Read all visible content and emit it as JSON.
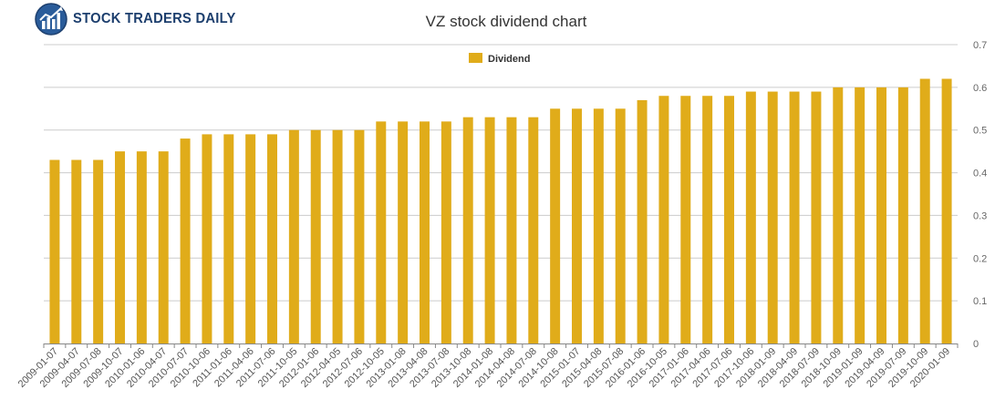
{
  "brand": {
    "logo_text": "STOCK TRADERS DAILY"
  },
  "chart_data": {
    "type": "bar",
    "title": "VZ stock dividend chart",
    "xlabel": "",
    "ylabel": "",
    "ylim": [
      0,
      0.7
    ],
    "yticks": [
      "0",
      "0.1",
      "0.2",
      "0.3",
      "0.4",
      "0.5",
      "0.6",
      "0.7"
    ],
    "y_axis_side": "right",
    "grid": true,
    "legend_position": "top-center",
    "bar_color": "#e0ac1a",
    "categories": [
      "2009-01-07",
      "2009-04-07",
      "2009-07-08",
      "2009-10-07",
      "2010-01-06",
      "2010-04-07",
      "2010-07-07",
      "2010-10-06",
      "2011-01-06",
      "2011-04-06",
      "2011-07-06",
      "2011-10-05",
      "2012-01-06",
      "2012-04-05",
      "2012-07-06",
      "2012-10-05",
      "2013-01-08",
      "2013-04-08",
      "2013-07-08",
      "2013-10-08",
      "2014-01-08",
      "2014-04-08",
      "2014-07-08",
      "2014-10-08",
      "2015-01-07",
      "2015-04-08",
      "2015-07-08",
      "2016-01-06",
      "2016-10-05",
      "2017-01-06",
      "2017-04-06",
      "2017-07-06",
      "2017-10-06",
      "2018-01-09",
      "2018-04-09",
      "2018-07-09",
      "2018-10-09",
      "2019-01-09",
      "2019-04-09",
      "2019-07-09",
      "2019-10-09",
      "2020-01-09"
    ],
    "series": [
      {
        "name": "Dividend",
        "values": [
          0.43,
          0.43,
          0.43,
          0.45,
          0.45,
          0.45,
          0.48,
          0.49,
          0.49,
          0.49,
          0.49,
          0.5,
          0.5,
          0.5,
          0.5,
          0.52,
          0.52,
          0.52,
          0.52,
          0.53,
          0.53,
          0.53,
          0.53,
          0.55,
          0.55,
          0.55,
          0.55,
          0.57,
          0.58,
          0.58,
          0.58,
          0.58,
          0.59,
          0.59,
          0.59,
          0.59,
          0.6,
          0.6,
          0.6,
          0.6,
          0.62,
          0.62
        ]
      }
    ]
  }
}
